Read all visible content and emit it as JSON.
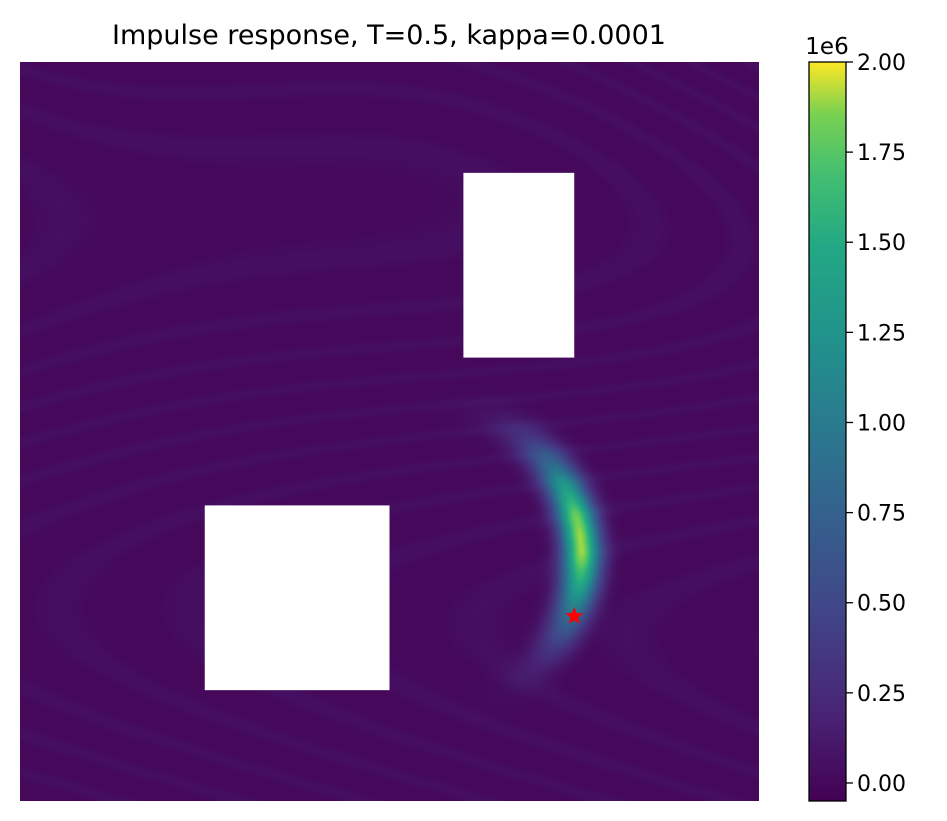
{
  "chart_data": {
    "type": "heatmap",
    "title": "Impulse response, T=0.5, kappa=0.0001",
    "xlabel": "",
    "ylabel": "",
    "axes_visible": false,
    "domain": {
      "x": [
        0,
        1
      ],
      "y": [
        0,
        1
      ]
    },
    "colormap": "viridis",
    "colorbar": {
      "vmin": -0.05,
      "vmax": 2.0,
      "offset_label": "1e6",
      "ticks": [
        0.0,
        0.25,
        0.5,
        0.75,
        1.0,
        1.25,
        1.5,
        1.75,
        2.0
      ],
      "tick_labels": [
        "0.00",
        "0.25",
        "0.50",
        "0.75",
        "1.00",
        "1.25",
        "1.50",
        "1.75",
        "2.00"
      ]
    },
    "obstacles": [
      {
        "x": [
          0.6,
          0.75
        ],
        "y": [
          0.6,
          0.85
        ]
      },
      {
        "x": [
          0.25,
          0.5
        ],
        "y": [
          0.15,
          0.4
        ]
      }
    ],
    "background_level": 0.0,
    "hotspot": {
      "peak": 1.9,
      "arc_center": [
        0.56,
        0.33
      ],
      "arc_radius": 0.2,
      "arc_angle_range_deg": [
        -30,
        60
      ],
      "arc_peak_angle_deg": 7,
      "arc_width": 0.018
    },
    "marker": {
      "x": 0.75,
      "y": 0.25,
      "symbol": "star",
      "color": "#ff0000"
    }
  }
}
